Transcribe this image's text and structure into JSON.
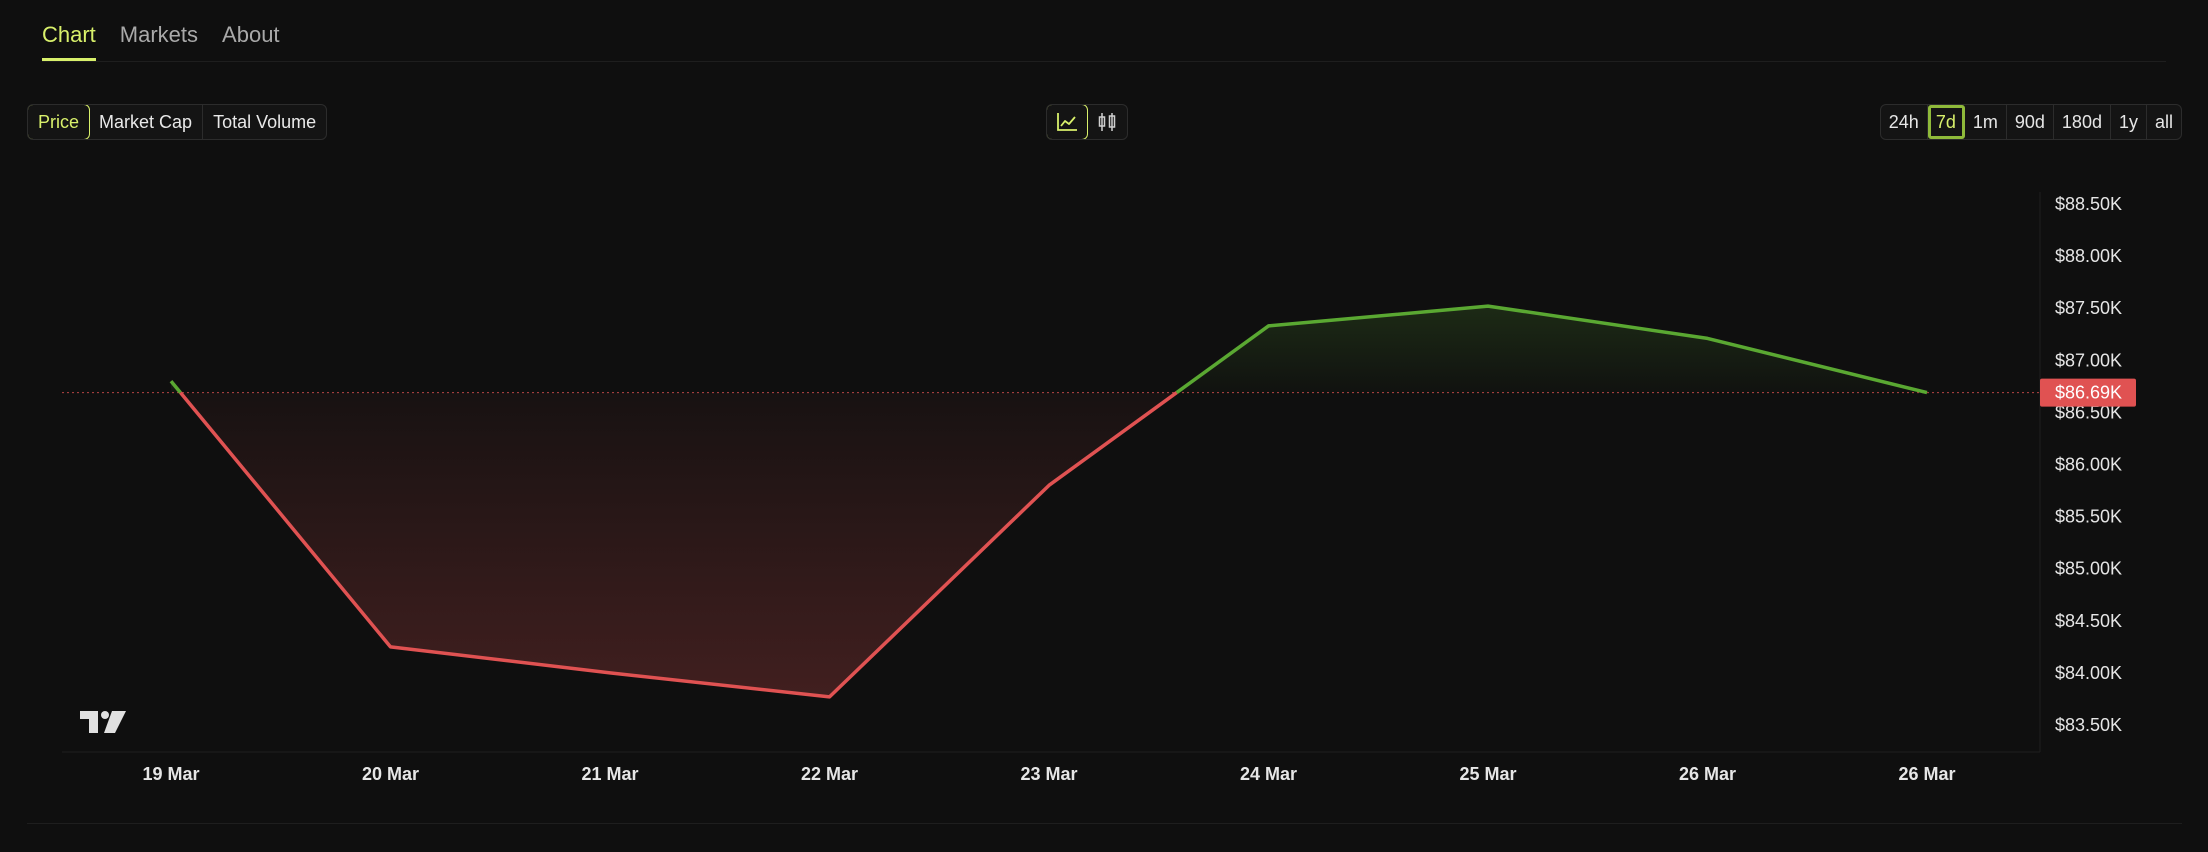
{
  "nav": {
    "tabs": [
      {
        "label": "Chart",
        "active": true
      },
      {
        "label": "Markets",
        "active": false
      },
      {
        "label": "About",
        "active": false
      }
    ]
  },
  "metrics": {
    "items": [
      {
        "label": "Price",
        "active": true
      },
      {
        "label": "Market Cap",
        "active": false
      },
      {
        "label": "Total Volume",
        "active": false
      }
    ]
  },
  "chart_type": {
    "items": [
      {
        "icon": "line-chart-icon",
        "active": true
      },
      {
        "icon": "candlestick-icon",
        "active": false
      }
    ]
  },
  "ranges": {
    "items": [
      {
        "label": "24h",
        "active": false
      },
      {
        "label": "7d",
        "active": true
      },
      {
        "label": "1m",
        "active": false
      },
      {
        "label": "90d",
        "active": false
      },
      {
        "label": "180d",
        "active": false
      },
      {
        "label": "1y",
        "active": false
      },
      {
        "label": "all",
        "active": false
      }
    ]
  },
  "colors": {
    "accent": "#d8f06b",
    "up": "#5aa832",
    "down": "#e05252",
    "background": "#0f0f0f"
  },
  "current_price_label": "$86.69K",
  "chart_data": {
    "type": "line",
    "x_labels": [
      "19 Mar",
      "20 Mar",
      "21 Mar",
      "22 Mar",
      "23 Mar",
      "24 Mar",
      "25 Mar",
      "26 Mar",
      "26 Mar"
    ],
    "x_label_bold": [
      true,
      true,
      true,
      true,
      true,
      true,
      true,
      false,
      false
    ],
    "points": [
      86800,
      84250,
      84000,
      83770,
      85800,
      87330,
      87520,
      87210,
      86690
    ],
    "baseline": 86690,
    "y_ticks": [
      {
        "value": 88500,
        "label": "$88.50K"
      },
      {
        "value": 88000,
        "label": "$88.00K"
      },
      {
        "value": 87500,
        "label": "$87.50K"
      },
      {
        "value": 87000,
        "label": "$87.00K"
      },
      {
        "value": 86500,
        "label": "$86.50K"
      },
      {
        "value": 86000,
        "label": "$86.00K"
      },
      {
        "value": 85500,
        "label": "$85.50K"
      },
      {
        "value": 85000,
        "label": "$85.00K"
      },
      {
        "value": 84500,
        "label": "$84.50K"
      },
      {
        "value": 84000,
        "label": "$84.00K"
      },
      {
        "value": 83500,
        "label": "$83.50K"
      }
    ],
    "ylim": [
      83300,
      88750
    ],
    "grid": false
  }
}
